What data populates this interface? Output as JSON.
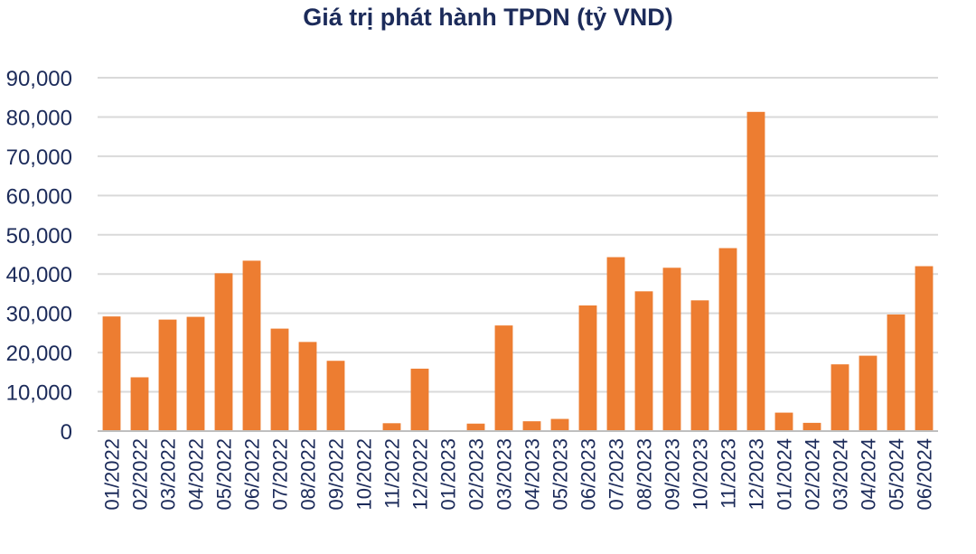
{
  "chart_data": {
    "type": "bar",
    "title": "Giá trị phát hành TPDN (tỷ VND)",
    "xlabel": "",
    "ylabel": "",
    "ylim": [
      0,
      90000
    ],
    "yticks": [
      0,
      10000,
      20000,
      30000,
      40000,
      50000,
      60000,
      70000,
      80000,
      90000
    ],
    "ytick_labels": [
      "0",
      "10,000",
      "20,000",
      "30,000",
      "40,000",
      "50,000",
      "60,000",
      "70,000",
      "80,000",
      "90,000"
    ],
    "grid": true,
    "legend": "none",
    "bar_color": "#ed7d31",
    "categories": [
      "01/2022",
      "02/2022",
      "03/2022",
      "04/2022",
      "05/2022",
      "06/2022",
      "07/2022",
      "08/2022",
      "09/2022",
      "10/2022",
      "11/2022",
      "12/2022",
      "01/2023",
      "02/2023",
      "03/2023",
      "04/2023",
      "05/2023",
      "06/2023",
      "07/2023",
      "08/2023",
      "09/2023",
      "10/2023",
      "11/2023",
      "12/2023",
      "01/2024",
      "02/2024",
      "03/2024",
      "04/2024",
      "05/2024",
      "06/2024"
    ],
    "values": [
      29200,
      13700,
      28400,
      29100,
      40200,
      43400,
      26100,
      22700,
      17900,
      0,
      2000,
      15900,
      0,
      1900,
      26900,
      2500,
      3100,
      32000,
      44300,
      35600,
      41600,
      33300,
      46600,
      81300,
      4700,
      2100,
      17000,
      19200,
      29700,
      42000
    ]
  }
}
